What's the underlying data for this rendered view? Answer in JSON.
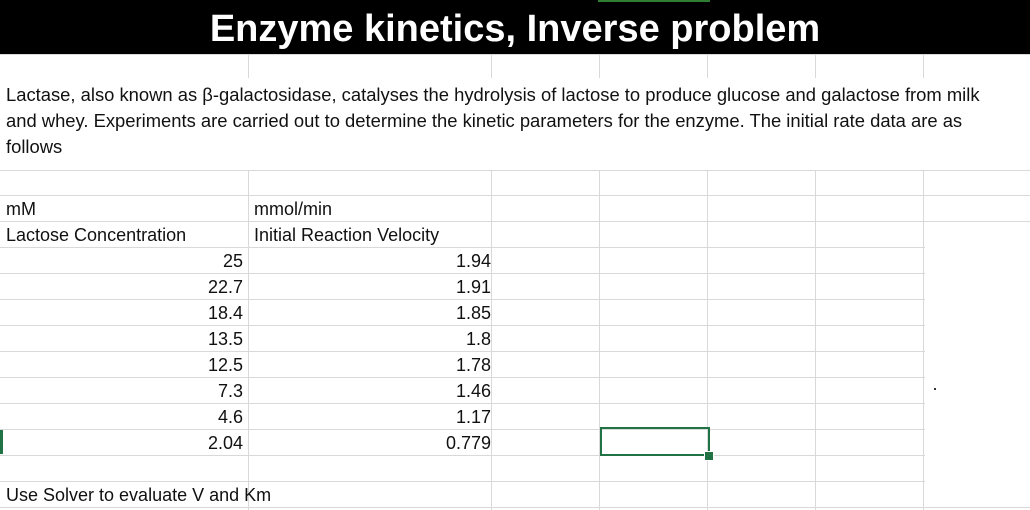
{
  "sheet": {
    "title": "Enzyme kinetics, Inverse problem",
    "description": "Lactase, also known as β-galactosidase, catalyses the hydrolysis of lactose to produce glucose and galactose from milk and whey. Experiments are carried out to determine the kinetic parameters for the enzyme. The initial rate data are as follows",
    "units": {
      "col_a": "mM",
      "col_b": "mmol/min"
    },
    "headers": {
      "col_a": "Lactose Concentration",
      "col_b": "Initial Reaction Velocity"
    },
    "rows": [
      {
        "a": "25",
        "b": "1.94"
      },
      {
        "a": "22.7",
        "b": "1.91"
      },
      {
        "a": "18.4",
        "b": "1.85"
      },
      {
        "a": "13.5",
        "b": "1.8"
      },
      {
        "a": "12.5",
        "b": "1.78"
      },
      {
        "a": "7.3",
        "b": "1.46"
      },
      {
        "a": "4.6",
        "b": "1.17"
      },
      {
        "a": "2.04",
        "b": "0.779"
      }
    ],
    "footer": "Use Solver to evaluate V and Km"
  },
  "colors": {
    "title_bg": "#000000",
    "title_text": "#ffffff",
    "selection": "#217346",
    "gridline": "#d9d9d9"
  }
}
